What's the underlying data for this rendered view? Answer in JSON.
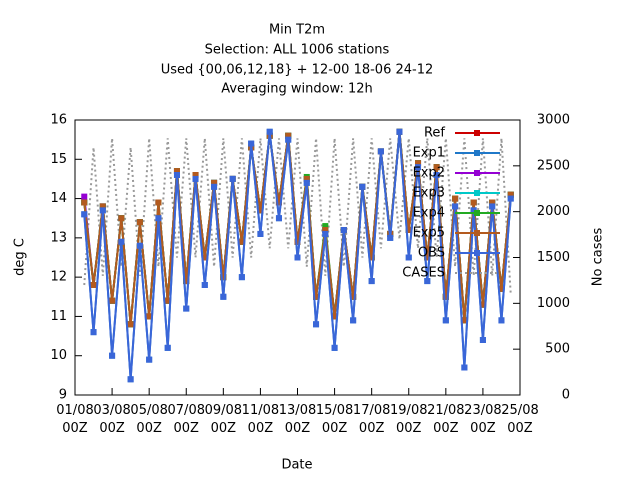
{
  "chart_data": {
    "type": "line",
    "title": "Min T2m",
    "subtitle": [
      "Selection: ALL   1006 stations",
      "Used {00,06,12,18} + 12-00 18-06 24-12",
      "Averaging window: 12h"
    ],
    "xlabel": "Date",
    "ylabel": "deg C",
    "y2label": "No cases",
    "categories": [
      "01/08 00Z",
      null,
      null,
      null,
      "03/08 00Z",
      null,
      null,
      null,
      "05/08 00Z",
      null,
      null,
      null,
      "07/08 00Z",
      null,
      null,
      null,
      "09/08 00Z",
      null,
      null,
      null,
      "11/08 00Z",
      null,
      null,
      null,
      "13/08 00Z",
      null,
      null,
      null,
      "15/08 00Z",
      null,
      null,
      null,
      "17/08 00Z",
      null,
      null,
      null,
      "19/08 00Z",
      null,
      null,
      null,
      "21/08 00Z",
      null,
      null,
      null,
      "23/08 00Z",
      null,
      null,
      null,
      "25/08 00Z"
    ],
    "ylim": [
      9,
      16
    ],
    "yticks": [
      9,
      10,
      11,
      12,
      13,
      14,
      15,
      16
    ],
    "y2lim": [
      0,
      3000
    ],
    "y2ticks": [
      0,
      500,
      1000,
      1500,
      2000,
      2500,
      3000
    ],
    "legend": "upper right",
    "series": [
      {
        "name": "Ref",
        "color": "#cc0000",
        "values": [
          null,
          13.9,
          11.8,
          13.8,
          11.4,
          13.5,
          10.8,
          13.4,
          11.0,
          13.9,
          11.4,
          14.7,
          11.9,
          14.6,
          12.5,
          14.4,
          12.0,
          14.5,
          12.9,
          15.3,
          13.7,
          15.6,
          13.9,
          15.6,
          12.9,
          14.5,
          11.5,
          13.2,
          11.0,
          13.2,
          11.5,
          14.3,
          12.5,
          15.2,
          13.1,
          15.7,
          13.2,
          14.9,
          12.5,
          14.8,
          11.5,
          14.0,
          10.9,
          13.9,
          11.3,
          13.9,
          11.7,
          14.1,
          null
        ]
      },
      {
        "name": "Exp1",
        "color": "#1f78c8",
        "values": [
          null,
          13.6,
          10.6,
          13.7,
          10.0,
          12.9,
          9.4,
          12.8,
          9.9,
          13.5,
          10.2,
          14.6,
          11.2,
          14.5,
          11.8,
          14.3,
          11.5,
          14.5,
          12.0,
          15.4,
          13.1,
          15.7,
          13.5,
          15.5,
          12.5,
          14.4,
          10.8,
          13.1,
          10.2,
          13.2,
          10.9,
          14.3,
          11.9,
          15.2,
          13.0,
          15.7,
          12.5,
          14.8,
          11.9,
          14.6,
          10.9,
          13.8,
          9.7,
          13.7,
          10.4,
          13.8,
          10.9,
          14.0,
          null
        ]
      },
      {
        "name": "Exp2",
        "color": "#9400d3",
        "values": [
          null,
          14.05,
          11.8,
          13.8,
          11.4,
          13.5,
          10.8,
          13.4,
          11.0,
          13.9,
          11.4,
          14.7,
          11.9,
          14.6,
          12.5,
          14.4,
          12.0,
          14.5,
          12.9,
          15.3,
          13.7,
          15.6,
          13.9,
          15.6,
          12.9,
          14.5,
          11.5,
          13.2,
          11.0,
          13.2,
          11.5,
          14.3,
          12.5,
          15.2,
          13.1,
          15.7,
          13.2,
          14.9,
          12.5,
          14.8,
          11.5,
          14.0,
          10.9,
          13.9,
          11.3,
          13.9,
          11.7,
          14.1,
          null
        ]
      },
      {
        "name": "Exp3",
        "color": "#00c8c8",
        "values": [
          null,
          13.9,
          11.8,
          13.8,
          11.4,
          13.5,
          10.8,
          13.4,
          11.0,
          13.9,
          11.4,
          14.7,
          11.9,
          14.6,
          12.5,
          14.4,
          12.0,
          14.5,
          12.9,
          15.3,
          13.7,
          15.6,
          13.9,
          15.6,
          12.9,
          14.5,
          11.5,
          13.2,
          11.0,
          13.2,
          11.5,
          14.3,
          12.5,
          15.2,
          13.1,
          15.7,
          13.2,
          14.9,
          12.5,
          14.8,
          11.5,
          14.0,
          10.9,
          13.9,
          11.3,
          13.9,
          11.7,
          14.1,
          null
        ]
      },
      {
        "name": "Exp4",
        "color": "#22aa22",
        "values": [
          null,
          13.9,
          11.8,
          13.8,
          11.4,
          13.5,
          10.8,
          13.4,
          11.0,
          13.9,
          11.4,
          14.7,
          11.9,
          14.6,
          12.5,
          14.4,
          12.0,
          14.5,
          12.9,
          15.3,
          13.7,
          15.6,
          13.9,
          15.6,
          12.9,
          14.55,
          11.5,
          13.3,
          11.0,
          13.2,
          11.5,
          14.3,
          12.5,
          15.2,
          13.1,
          15.7,
          13.2,
          14.9,
          12.5,
          14.8,
          11.5,
          14.0,
          10.9,
          13.9,
          11.3,
          13.9,
          11.7,
          14.1,
          null
        ]
      },
      {
        "name": "Exp5",
        "color": "#b35a1f",
        "values": [
          null,
          13.9,
          11.8,
          13.8,
          11.4,
          13.5,
          10.8,
          13.4,
          11.0,
          13.9,
          11.4,
          14.7,
          11.9,
          14.6,
          12.5,
          14.4,
          12.0,
          14.5,
          12.9,
          15.3,
          13.7,
          15.6,
          13.9,
          15.6,
          12.9,
          14.5,
          11.5,
          13.2,
          11.0,
          13.2,
          11.5,
          14.3,
          12.5,
          15.2,
          13.1,
          15.7,
          13.2,
          14.9,
          12.5,
          14.8,
          11.5,
          14.0,
          10.9,
          13.9,
          11.3,
          13.9,
          11.7,
          14.1,
          null
        ]
      },
      {
        "name": "OBS",
        "color": "#3a66d8",
        "values": [
          null,
          13.6,
          10.6,
          13.7,
          10.0,
          12.9,
          9.4,
          12.8,
          9.9,
          13.5,
          10.2,
          14.6,
          11.2,
          14.5,
          11.8,
          14.3,
          11.5,
          14.5,
          12.0,
          15.4,
          13.1,
          15.7,
          13.5,
          15.5,
          12.5,
          14.4,
          10.8,
          13.1,
          10.2,
          13.2,
          10.9,
          14.3,
          11.9,
          15.2,
          13.0,
          15.7,
          12.5,
          14.8,
          11.9,
          14.6,
          10.9,
          13.8,
          9.7,
          13.7,
          10.4,
          13.8,
          10.9,
          14.0,
          null
        ]
      },
      {
        "name": "CASES",
        "color": "#999999",
        "axis": "y2",
        "values": [
          null,
          1200,
          2700,
          1300,
          2800,
          1400,
          2700,
          1300,
          2800,
          1400,
          2800,
          1500,
          2800,
          1500,
          2800,
          1400,
          2800,
          1500,
          2800,
          1500,
          2800,
          1600,
          2800,
          1600,
          2800,
          1400,
          2800,
          1300,
          2800,
          1400,
          2800,
          1500,
          2800,
          1600,
          2800,
          1700,
          2800,
          1600,
          2800,
          1500,
          2800,
          1400,
          2800,
          1300,
          2800,
          1300,
          2800,
          1100,
          null
        ]
      }
    ]
  }
}
